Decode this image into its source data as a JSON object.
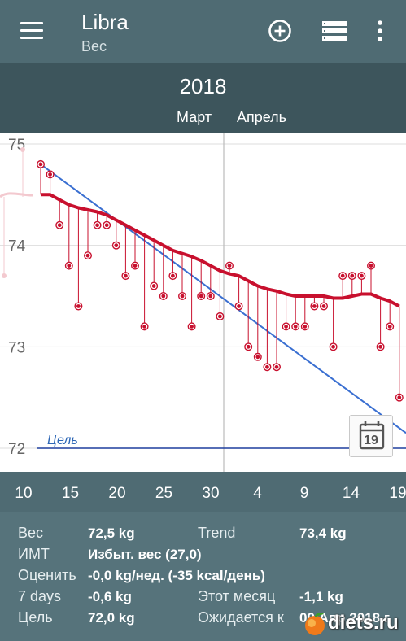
{
  "app": {
    "title": "Libra",
    "subtitle": "Вес"
  },
  "toolbar": {
    "icons": [
      "menu-icon",
      "add-circle-icon",
      "list-icon",
      "more-vert-icon"
    ]
  },
  "period": {
    "year": "2018",
    "months": [
      "Март",
      "Апрель"
    ]
  },
  "colors": {
    "appbar": "#4f6b73",
    "period_bar": "#3d555c",
    "trend_line": "#c8102e",
    "goal_line": "#1f3f9e",
    "forecast_line": "#3a6fd1",
    "point": "#c8102e"
  },
  "chart_data": {
    "type": "line",
    "ylim": [
      71.8,
      75.1
    ],
    "y_ticks": [
      "75",
      "74",
      "73",
      "72"
    ],
    "x_tick_labels": [
      "10",
      "15",
      "20",
      "25",
      "30",
      "4",
      "9",
      "14",
      "19"
    ],
    "goal": {
      "label": "Цель",
      "value": 72.0
    },
    "calendar_button": "19",
    "series": [
      {
        "values": [
          74.8,
          74.7,
          74.2,
          73.8,
          73.4,
          73.9,
          74.2,
          74.2,
          74.0,
          73.7,
          73.8,
          73.2,
          73.6,
          73.5,
          73.7,
          73.5,
          73.2,
          73.5,
          73.5,
          73.3,
          73.8,
          73.4,
          73.0,
          72.9,
          72.8,
          72.8,
          73.2,
          73.2,
          73.2,
          73.4,
          73.4,
          73.0,
          73.7,
          73.7,
          73.7,
          73.8,
          73.0,
          73.2,
          72.5
        ]
      },
      {
        "values": [
          74.5,
          74.5,
          74.45,
          74.4,
          74.37,
          74.35,
          74.33,
          74.3,
          74.25,
          74.2,
          74.15,
          74.1,
          74.05,
          74.0,
          73.95,
          73.92,
          73.89,
          73.85,
          73.8,
          73.75,
          73.72,
          73.7,
          73.65,
          73.6,
          73.57,
          73.55,
          73.52,
          73.5,
          73.5,
          73.5,
          73.5,
          73.48,
          73.48,
          73.5,
          73.52,
          73.52,
          73.48,
          73.45,
          73.4
        ]
      }
    ]
  },
  "stats": {
    "rows": [
      {
        "label": "Вес",
        "value": "72,5 kg",
        "label2": "Trend",
        "value2": "73,4 kg"
      },
      {
        "label": "ИМТ",
        "value": "Избыт. вес (27,0)"
      },
      {
        "label": "Оценить",
        "value": "-0,0 kg/нед. (-35 kcal/день)"
      },
      {
        "label": "7 days",
        "value": "-0,6 kg",
        "label2": "Этот месяц",
        "value2": "-1,1 kg"
      },
      {
        "label": "Цель",
        "value": "72,0 kg",
        "label2": "Ожидается к",
        "value2": "09 Апр 2018 г."
      }
    ]
  },
  "watermark": "diets.ru"
}
